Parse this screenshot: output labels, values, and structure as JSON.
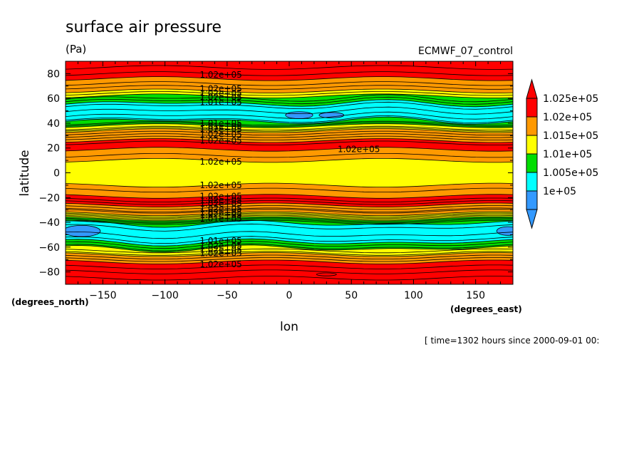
{
  "chart_data": {
    "type": "heatmap",
    "title": "surface air pressure",
    "units": "(Pa)",
    "model": "ECMWF_07_control",
    "xlabel": "lon",
    "ylabel": "latitude",
    "x_unit": "(degrees_east)",
    "y_unit": "(degrees_north)",
    "time_label": "[ time=1302 hours since 2000-09-01 00:",
    "xlim": [
      -180,
      180
    ],
    "ylim": [
      -90,
      90
    ],
    "x_ticks": [
      -150,
      -100,
      -50,
      0,
      50,
      100,
      150
    ],
    "y_ticks": [
      80,
      60,
      40,
      20,
      0,
      -20,
      -40,
      -60,
      -80
    ],
    "colorbar": {
      "labels": [
        "1.025e+05",
        "1.02e+05",
        "1.015e+05",
        "1.01e+05",
        "1.005e+05",
        "1e+05"
      ],
      "colors": [
        "#ff0000",
        "#ff9900",
        "#ffff00",
        "#00dd00",
        "#00ffff",
        "#3399ff"
      ],
      "extend": "both"
    },
    "bands": [
      {
        "lat": [
          76,
          90
        ],
        "color": "#ff0000"
      },
      {
        "lat": [
          66,
          76
        ],
        "color": "#ff9900"
      },
      {
        "lat": [
          62,
          66
        ],
        "color": "#ffff00"
      },
      {
        "lat": [
          56,
          62
        ],
        "color": "#00dd00"
      },
      {
        "lat": [
          42,
          56
        ],
        "color": "#00ffff"
      },
      {
        "lat": [
          38,
          42
        ],
        "color": "#00dd00"
      },
      {
        "lat": [
          34,
          38
        ],
        "color": "#ffff00"
      },
      {
        "lat": [
          26,
          34
        ],
        "color": "#ff9900"
      },
      {
        "lat": [
          19,
          26
        ],
        "color": "#ff0000"
      },
      {
        "lat": [
          10,
          19
        ],
        "color": "#ff9900"
      },
      {
        "lat": [
          -10,
          10
        ],
        "color": "#ffff00"
      },
      {
        "lat": [
          -19,
          -10
        ],
        "color": "#ff9900"
      },
      {
        "lat": [
          -26,
          -19
        ],
        "color": "#ff0000"
      },
      {
        "lat": [
          -33,
          -26
        ],
        "color": "#ff9900"
      },
      {
        "lat": [
          -37,
          -33
        ],
        "color": "#ffff00"
      },
      {
        "lat": [
          -41,
          -37
        ],
        "color": "#00dd00"
      },
      {
        "lat": [
          -56,
          -41
        ],
        "color": "#00ffff"
      },
      {
        "lat": [
          -61,
          -56
        ],
        "color": "#00dd00"
      },
      {
        "lat": [
          -66,
          -61
        ],
        "color": "#ffff00"
      },
      {
        "lat": [
          -72,
          -66
        ],
        "color": "#ff9900"
      },
      {
        "lat": [
          -90,
          -72
        ],
        "color": "#ff0000"
      }
    ],
    "contour_lats": [
      85,
      80,
      76,
      72,
      69,
      66,
      64,
      62,
      60,
      58,
      56,
      54,
      50,
      46,
      43,
      42,
      40,
      39,
      38,
      36,
      35,
      34,
      32,
      30,
      28,
      26,
      24,
      19,
      14,
      10,
      -10,
      -14,
      -19,
      -22,
      -24,
      -26,
      -28,
      -30,
      -31,
      -33,
      -34,
      -35,
      -36,
      -37,
      -38,
      -39,
      -40,
      -41,
      -44,
      -50,
      -54,
      -56,
      -58,
      -60,
      -61,
      -63,
      -65,
      -66,
      -68,
      -70,
      -72,
      -76,
      -80,
      -85
    ],
    "lows": [
      {
        "lon": 8,
        "lat": 46.5,
        "dlon": 11,
        "dlat": 2.8
      },
      {
        "lon": 34,
        "lat": 46.5,
        "dlon": 10,
        "dlat": 2.2
      },
      {
        "lon": -167,
        "lat": -47,
        "dlon": 15,
        "dlat": 4.5
      },
      {
        "lon": 176,
        "lat": -47,
        "dlon": 9,
        "dlat": 3.5
      }
    ],
    "extra_reds": [
      {
        "lon": 30,
        "lat": -82,
        "dlon": 8,
        "dlat": 1.2
      }
    ],
    "contour_labels": [
      {
        "text": "1.02e+05",
        "lon": -55,
        "lat": 79
      },
      {
        "text": "1.02e+05",
        "lon": -55,
        "lat": 68
      },
      {
        "text": "1.02e+05",
        "lon": -55,
        "lat": 64
      },
      {
        "text": "1.02e+05",
        "lon": -55,
        "lat": 61
      },
      {
        "text": "1.01e+05",
        "lon": -55,
        "lat": 57
      },
      {
        "text": "1.01e+05",
        "lon": -55,
        "lat": 40
      },
      {
        "text": "1.01e+05",
        "lon": -55,
        "lat": 37.5
      },
      {
        "text": "1.02e+05",
        "lon": -55,
        "lat": 35
      },
      {
        "text": "1.02e+05",
        "lon": -55,
        "lat": 31
      },
      {
        "text": "1.02e+05",
        "lon": -55,
        "lat": 26
      },
      {
        "text": "1.02e+05",
        "lon": 56,
        "lat": 19
      },
      {
        "text": "1.02e+05",
        "lon": -55,
        "lat": 9
      },
      {
        "text": "1.02e+05",
        "lon": -55,
        "lat": -10
      },
      {
        "text": "1.02e+05",
        "lon": -55,
        "lat": -19
      },
      {
        "text": "1.02e+05",
        "lon": -55,
        "lat": -22
      },
      {
        "text": "1.02e+05",
        "lon": -55,
        "lat": -25
      },
      {
        "text": "1.02e+05",
        "lon": -55,
        "lat": -29
      },
      {
        "text": "1.02e+05",
        "lon": -55,
        "lat": -32
      },
      {
        "text": "1.02e+05",
        "lon": -55,
        "lat": -34
      },
      {
        "text": "1.01e+05",
        "lon": -55,
        "lat": -37
      },
      {
        "text": "1.01e+05",
        "lon": -55,
        "lat": -55
      },
      {
        "text": "1.02e+05",
        "lon": -55,
        "lat": -59
      },
      {
        "text": "1.02e+05",
        "lon": -55,
        "lat": -62
      },
      {
        "text": "1.02e+05",
        "lon": -55,
        "lat": -65
      },
      {
        "text": "1.02e+05",
        "lon": -55,
        "lat": -74
      }
    ]
  }
}
